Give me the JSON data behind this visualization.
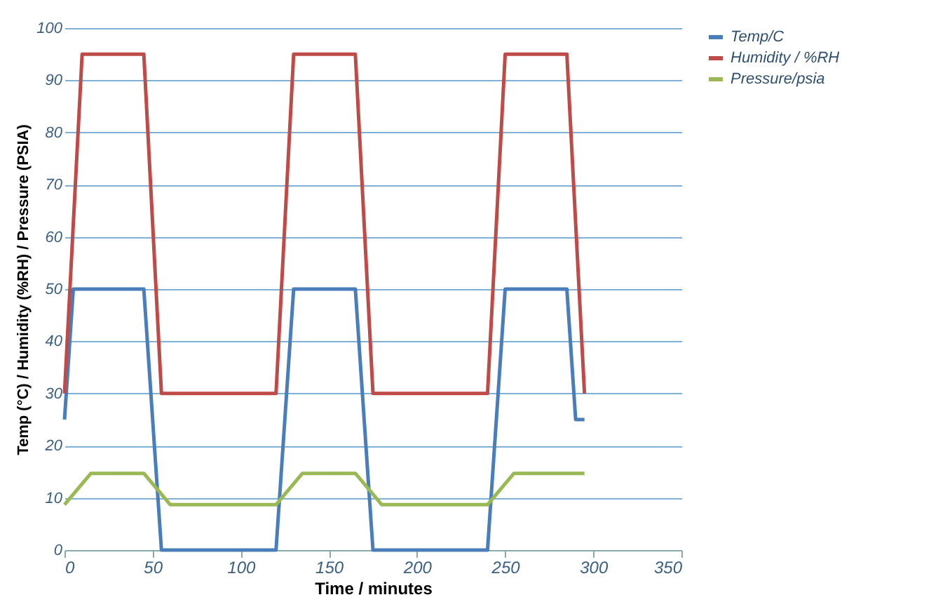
{
  "chart_data": {
    "type": "line",
    "xlabel": "Time / minutes",
    "ylabel": "Temp (°C) / Humidity (%RH) / Pressure (PSIA)",
    "xlim": [
      0,
      350
    ],
    "xticks": [
      0,
      50,
      100,
      150,
      200,
      250,
      300,
      350
    ],
    "ylim": [
      0,
      100
    ],
    "yticks": [
      0,
      10,
      20,
      30,
      40,
      50,
      60,
      70,
      80,
      90,
      100
    ],
    "grid": "y",
    "legend": "right",
    "marker": "none",
    "line_style": "solid",
    "series": [
      {
        "name": "Temp/C",
        "color": "#4a7ebb",
        "x": [
          0,
          5,
          45,
          55,
          120,
          130,
          165,
          175,
          240,
          250,
          285,
          290,
          295
        ],
        "values": [
          25,
          50,
          50,
          0,
          0,
          50,
          50,
          0,
          0,
          50,
          50,
          25,
          25
        ]
      },
      {
        "name": "Humidity / %RH",
        "color": "#be4b48",
        "x": [
          0,
          10,
          45,
          55,
          120,
          130,
          165,
          175,
          240,
          250,
          285,
          295
        ],
        "values": [
          30,
          95,
          95,
          30,
          30,
          95,
          95,
          30,
          30,
          95,
          95,
          30
        ]
      },
      {
        "name": "Pressure/psia",
        "color": "#98b954",
        "x": [
          0,
          15,
          45,
          60,
          120,
          135,
          165,
          180,
          240,
          255,
          295
        ],
        "values": [
          8.7,
          14.7,
          14.7,
          8.7,
          8.7,
          14.7,
          14.7,
          8.7,
          8.7,
          14.7,
          14.7
        ]
      }
    ]
  }
}
